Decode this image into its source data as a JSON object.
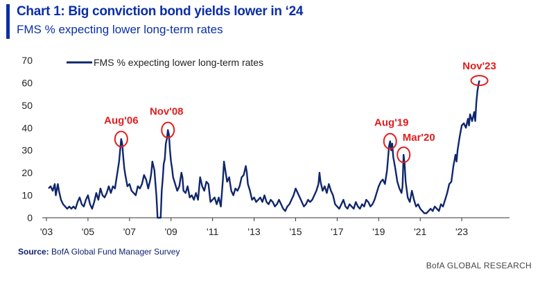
{
  "header": {
    "title": "Chart 1: Big conviction bond yields lower in ‘24",
    "subtitle": "FMS % expecting lower long-term rates"
  },
  "footer": {
    "source_label": "Source:",
    "source_text": "BofA Global Fund Manager Survey",
    "brand": "BofA GLOBAL RESEARCH"
  },
  "colors": {
    "accent": "#0a2fa6",
    "line": "#10266b",
    "annotation": "#e01e1e"
  },
  "chart_data": {
    "type": "line",
    "title": "Chart 1: Big conviction bond yields lower in ‘24",
    "subtitle": "FMS % expecting lower long-term rates",
    "xlabel": "",
    "ylabel": "",
    "ylim": [
      0,
      70
    ],
    "yticks": [
      0,
      10,
      20,
      30,
      40,
      50,
      60,
      70
    ],
    "xlim": [
      2003.0,
      2025.3
    ],
    "xticks": [
      {
        "value": 2003,
        "label": "'03"
      },
      {
        "value": 2005,
        "label": "'05"
      },
      {
        "value": 2007,
        "label": "'07"
      },
      {
        "value": 2009,
        "label": "'09"
      },
      {
        "value": 2011,
        "label": "'11"
      },
      {
        "value": 2013,
        "label": "'13"
      },
      {
        "value": 2015,
        "label": "'15"
      },
      {
        "value": 2017,
        "label": "'17"
      },
      {
        "value": 2019,
        "label": "'19"
      },
      {
        "value": 2021,
        "label": "'21"
      },
      {
        "value": 2023,
        "label": "'23"
      }
    ],
    "grid": false,
    "legend": "top-left",
    "series": [
      {
        "name": "FMS % expecting lower long-term rates",
        "points": [
          [
            2003.1,
            13
          ],
          [
            2003.2,
            14
          ],
          [
            2003.3,
            12
          ],
          [
            2003.4,
            15
          ],
          [
            2003.45,
            10
          ],
          [
            2003.55,
            15
          ],
          [
            2003.6,
            12
          ],
          [
            2003.7,
            8
          ],
          [
            2003.8,
            6
          ],
          [
            2003.9,
            5
          ],
          [
            2004.0,
            4
          ],
          [
            2004.1,
            5
          ],
          [
            2004.2,
            4
          ],
          [
            2004.3,
            5
          ],
          [
            2004.4,
            4
          ],
          [
            2004.5,
            7
          ],
          [
            2004.6,
            9
          ],
          [
            2004.7,
            6
          ],
          [
            2004.8,
            5
          ],
          [
            2004.9,
            8
          ],
          [
            2005.0,
            10
          ],
          [
            2005.1,
            6
          ],
          [
            2005.2,
            4
          ],
          [
            2005.3,
            7
          ],
          [
            2005.4,
            11
          ],
          [
            2005.5,
            8
          ],
          [
            2005.6,
            13
          ],
          [
            2005.7,
            10
          ],
          [
            2005.8,
            9
          ],
          [
            2005.9,
            11
          ],
          [
            2006.0,
            14
          ],
          [
            2006.1,
            11
          ],
          [
            2006.2,
            14
          ],
          [
            2006.3,
            13
          ],
          [
            2006.35,
            16
          ],
          [
            2006.4,
            19
          ],
          [
            2006.5,
            25
          ],
          [
            2006.55,
            30
          ],
          [
            2006.6,
            35
          ],
          [
            2006.65,
            33
          ],
          [
            2006.7,
            27
          ],
          [
            2006.75,
            22
          ],
          [
            2006.8,
            19
          ],
          [
            2006.9,
            14
          ],
          [
            2007.0,
            15
          ],
          [
            2007.1,
            12
          ],
          [
            2007.2,
            11
          ],
          [
            2007.3,
            10
          ],
          [
            2007.4,
            14
          ],
          [
            2007.5,
            13
          ],
          [
            2007.6,
            15
          ],
          [
            2007.7,
            19
          ],
          [
            2007.8,
            17
          ],
          [
            2007.9,
            13
          ],
          [
            2008.0,
            17
          ],
          [
            2008.05,
            20
          ],
          [
            2008.1,
            25
          ],
          [
            2008.2,
            21
          ],
          [
            2008.25,
            15
          ],
          [
            2008.3,
            9
          ],
          [
            2008.35,
            0
          ],
          [
            2008.4,
            0
          ],
          [
            2008.45,
            0
          ],
          [
            2008.5,
            0
          ],
          [
            2008.55,
            12
          ],
          [
            2008.6,
            17
          ],
          [
            2008.65,
            24
          ],
          [
            2008.7,
            26
          ],
          [
            2008.75,
            33
          ],
          [
            2008.8,
            35
          ],
          [
            2008.85,
            39
          ],
          [
            2008.9,
            37
          ],
          [
            2008.95,
            30
          ],
          [
            2009.0,
            25
          ],
          [
            2009.05,
            22
          ],
          [
            2009.1,
            18
          ],
          [
            2009.2,
            15
          ],
          [
            2009.3,
            12
          ],
          [
            2009.4,
            14
          ],
          [
            2009.5,
            20
          ],
          [
            2009.55,
            18
          ],
          [
            2009.6,
            12
          ],
          [
            2009.7,
            11
          ],
          [
            2009.8,
            14
          ],
          [
            2009.9,
            9
          ],
          [
            2010.0,
            10
          ],
          [
            2010.1,
            8
          ],
          [
            2010.2,
            11
          ],
          [
            2010.3,
            8
          ],
          [
            2010.4,
            18
          ],
          [
            2010.5,
            14
          ],
          [
            2010.6,
            12
          ],
          [
            2010.7,
            16
          ],
          [
            2010.8,
            15
          ],
          [
            2010.9,
            7
          ],
          [
            2011.0,
            8
          ],
          [
            2011.1,
            9
          ],
          [
            2011.2,
            6
          ],
          [
            2011.3,
            9
          ],
          [
            2011.4,
            5
          ],
          [
            2011.5,
            17
          ],
          [
            2011.55,
            25
          ],
          [
            2011.6,
            22
          ],
          [
            2011.7,
            16
          ],
          [
            2011.8,
            18
          ],
          [
            2011.9,
            12
          ],
          [
            2012.0,
            10
          ],
          [
            2012.1,
            13
          ],
          [
            2012.2,
            12
          ],
          [
            2012.3,
            14
          ],
          [
            2012.4,
            18
          ],
          [
            2012.5,
            19
          ],
          [
            2012.6,
            23
          ],
          [
            2012.65,
            20
          ],
          [
            2012.7,
            15
          ],
          [
            2012.8,
            12
          ],
          [
            2012.9,
            8
          ],
          [
            2013.0,
            9
          ],
          [
            2013.1,
            7
          ],
          [
            2013.2,
            8
          ],
          [
            2013.3,
            9
          ],
          [
            2013.4,
            7
          ],
          [
            2013.5,
            10
          ],
          [
            2013.6,
            7
          ],
          [
            2013.7,
            6
          ],
          [
            2013.8,
            8
          ],
          [
            2013.9,
            7
          ],
          [
            2014.0,
            5
          ],
          [
            2014.1,
            6
          ],
          [
            2014.2,
            8
          ],
          [
            2014.3,
            6
          ],
          [
            2014.4,
            4
          ],
          [
            2014.5,
            3
          ],
          [
            2014.6,
            5
          ],
          [
            2014.7,
            6
          ],
          [
            2014.8,
            8
          ],
          [
            2014.9,
            10
          ],
          [
            2015.0,
            13
          ],
          [
            2015.1,
            11
          ],
          [
            2015.2,
            9
          ],
          [
            2015.3,
            7
          ],
          [
            2015.4,
            5
          ],
          [
            2015.5,
            6
          ],
          [
            2015.6,
            8
          ],
          [
            2015.7,
            7
          ],
          [
            2015.8,
            8
          ],
          [
            2015.9,
            10
          ],
          [
            2016.0,
            12
          ],
          [
            2016.1,
            15
          ],
          [
            2016.15,
            20
          ],
          [
            2016.2,
            16
          ],
          [
            2016.3,
            12
          ],
          [
            2016.4,
            14
          ],
          [
            2016.5,
            11
          ],
          [
            2016.6,
            15
          ],
          [
            2016.7,
            12
          ],
          [
            2016.8,
            10
          ],
          [
            2016.9,
            6
          ],
          [
            2017.0,
            5
          ],
          [
            2017.1,
            4
          ],
          [
            2017.2,
            6
          ],
          [
            2017.3,
            8
          ],
          [
            2017.4,
            5
          ],
          [
            2017.5,
            4
          ],
          [
            2017.6,
            6
          ],
          [
            2017.7,
            5
          ],
          [
            2017.8,
            4
          ],
          [
            2017.9,
            7
          ],
          [
            2018.0,
            5
          ],
          [
            2018.1,
            4
          ],
          [
            2018.2,
            6
          ],
          [
            2018.3,
            5
          ],
          [
            2018.4,
            8
          ],
          [
            2018.5,
            7
          ],
          [
            2018.6,
            5
          ],
          [
            2018.7,
            6
          ],
          [
            2018.8,
            8
          ],
          [
            2018.9,
            11
          ],
          [
            2019.0,
            14
          ],
          [
            2019.1,
            16
          ],
          [
            2019.2,
            17
          ],
          [
            2019.3,
            15
          ],
          [
            2019.4,
            21
          ],
          [
            2019.5,
            32
          ],
          [
            2019.55,
            34
          ],
          [
            2019.6,
            30
          ],
          [
            2019.65,
            33
          ],
          [
            2019.7,
            27
          ],
          [
            2019.8,
            22
          ],
          [
            2019.9,
            16
          ],
          [
            2020.0,
            13
          ],
          [
            2020.1,
            11
          ],
          [
            2020.15,
            14
          ],
          [
            2020.2,
            28
          ],
          [
            2020.25,
            24
          ],
          [
            2020.3,
            16
          ],
          [
            2020.4,
            9
          ],
          [
            2020.5,
            7
          ],
          [
            2020.6,
            12
          ],
          [
            2020.7,
            8
          ],
          [
            2020.8,
            5
          ],
          [
            2020.9,
            6
          ],
          [
            2021.0,
            4
          ],
          [
            2021.1,
            3
          ],
          [
            2021.2,
            2
          ],
          [
            2021.3,
            2
          ],
          [
            2021.4,
            3
          ],
          [
            2021.5,
            4
          ],
          [
            2021.6,
            3
          ],
          [
            2021.7,
            5
          ],
          [
            2021.8,
            4
          ],
          [
            2021.9,
            3
          ],
          [
            2022.0,
            6
          ],
          [
            2022.1,
            5
          ],
          [
            2022.2,
            8
          ],
          [
            2022.3,
            11
          ],
          [
            2022.4,
            15
          ],
          [
            2022.5,
            16
          ],
          [
            2022.6,
            23
          ],
          [
            2022.7,
            28
          ],
          [
            2022.75,
            25
          ],
          [
            2022.8,
            30
          ],
          [
            2022.9,
            36
          ],
          [
            2023.0,
            41
          ],
          [
            2023.1,
            42
          ],
          [
            2023.2,
            40
          ],
          [
            2023.3,
            44
          ],
          [
            2023.35,
            41
          ],
          [
            2023.4,
            46
          ],
          [
            2023.5,
            43
          ],
          [
            2023.6,
            47
          ],
          [
            2023.65,
            43
          ],
          [
            2023.7,
            51
          ],
          [
            2023.75,
            56
          ],
          [
            2023.8,
            59
          ],
          [
            2023.85,
            61
          ]
        ]
      }
    ],
    "annotations": [
      {
        "label": "Aug'06",
        "x": 2006.6,
        "y": 35
      },
      {
        "label": "Nov'08",
        "x": 2008.85,
        "y": 39
      },
      {
        "label": "Aug'19",
        "x": 2019.55,
        "y": 34
      },
      {
        "label": "Mar'20",
        "x": 2020.2,
        "y": 28
      },
      {
        "label": "Nov'23",
        "x": 2023.85,
        "y": 61
      }
    ]
  }
}
